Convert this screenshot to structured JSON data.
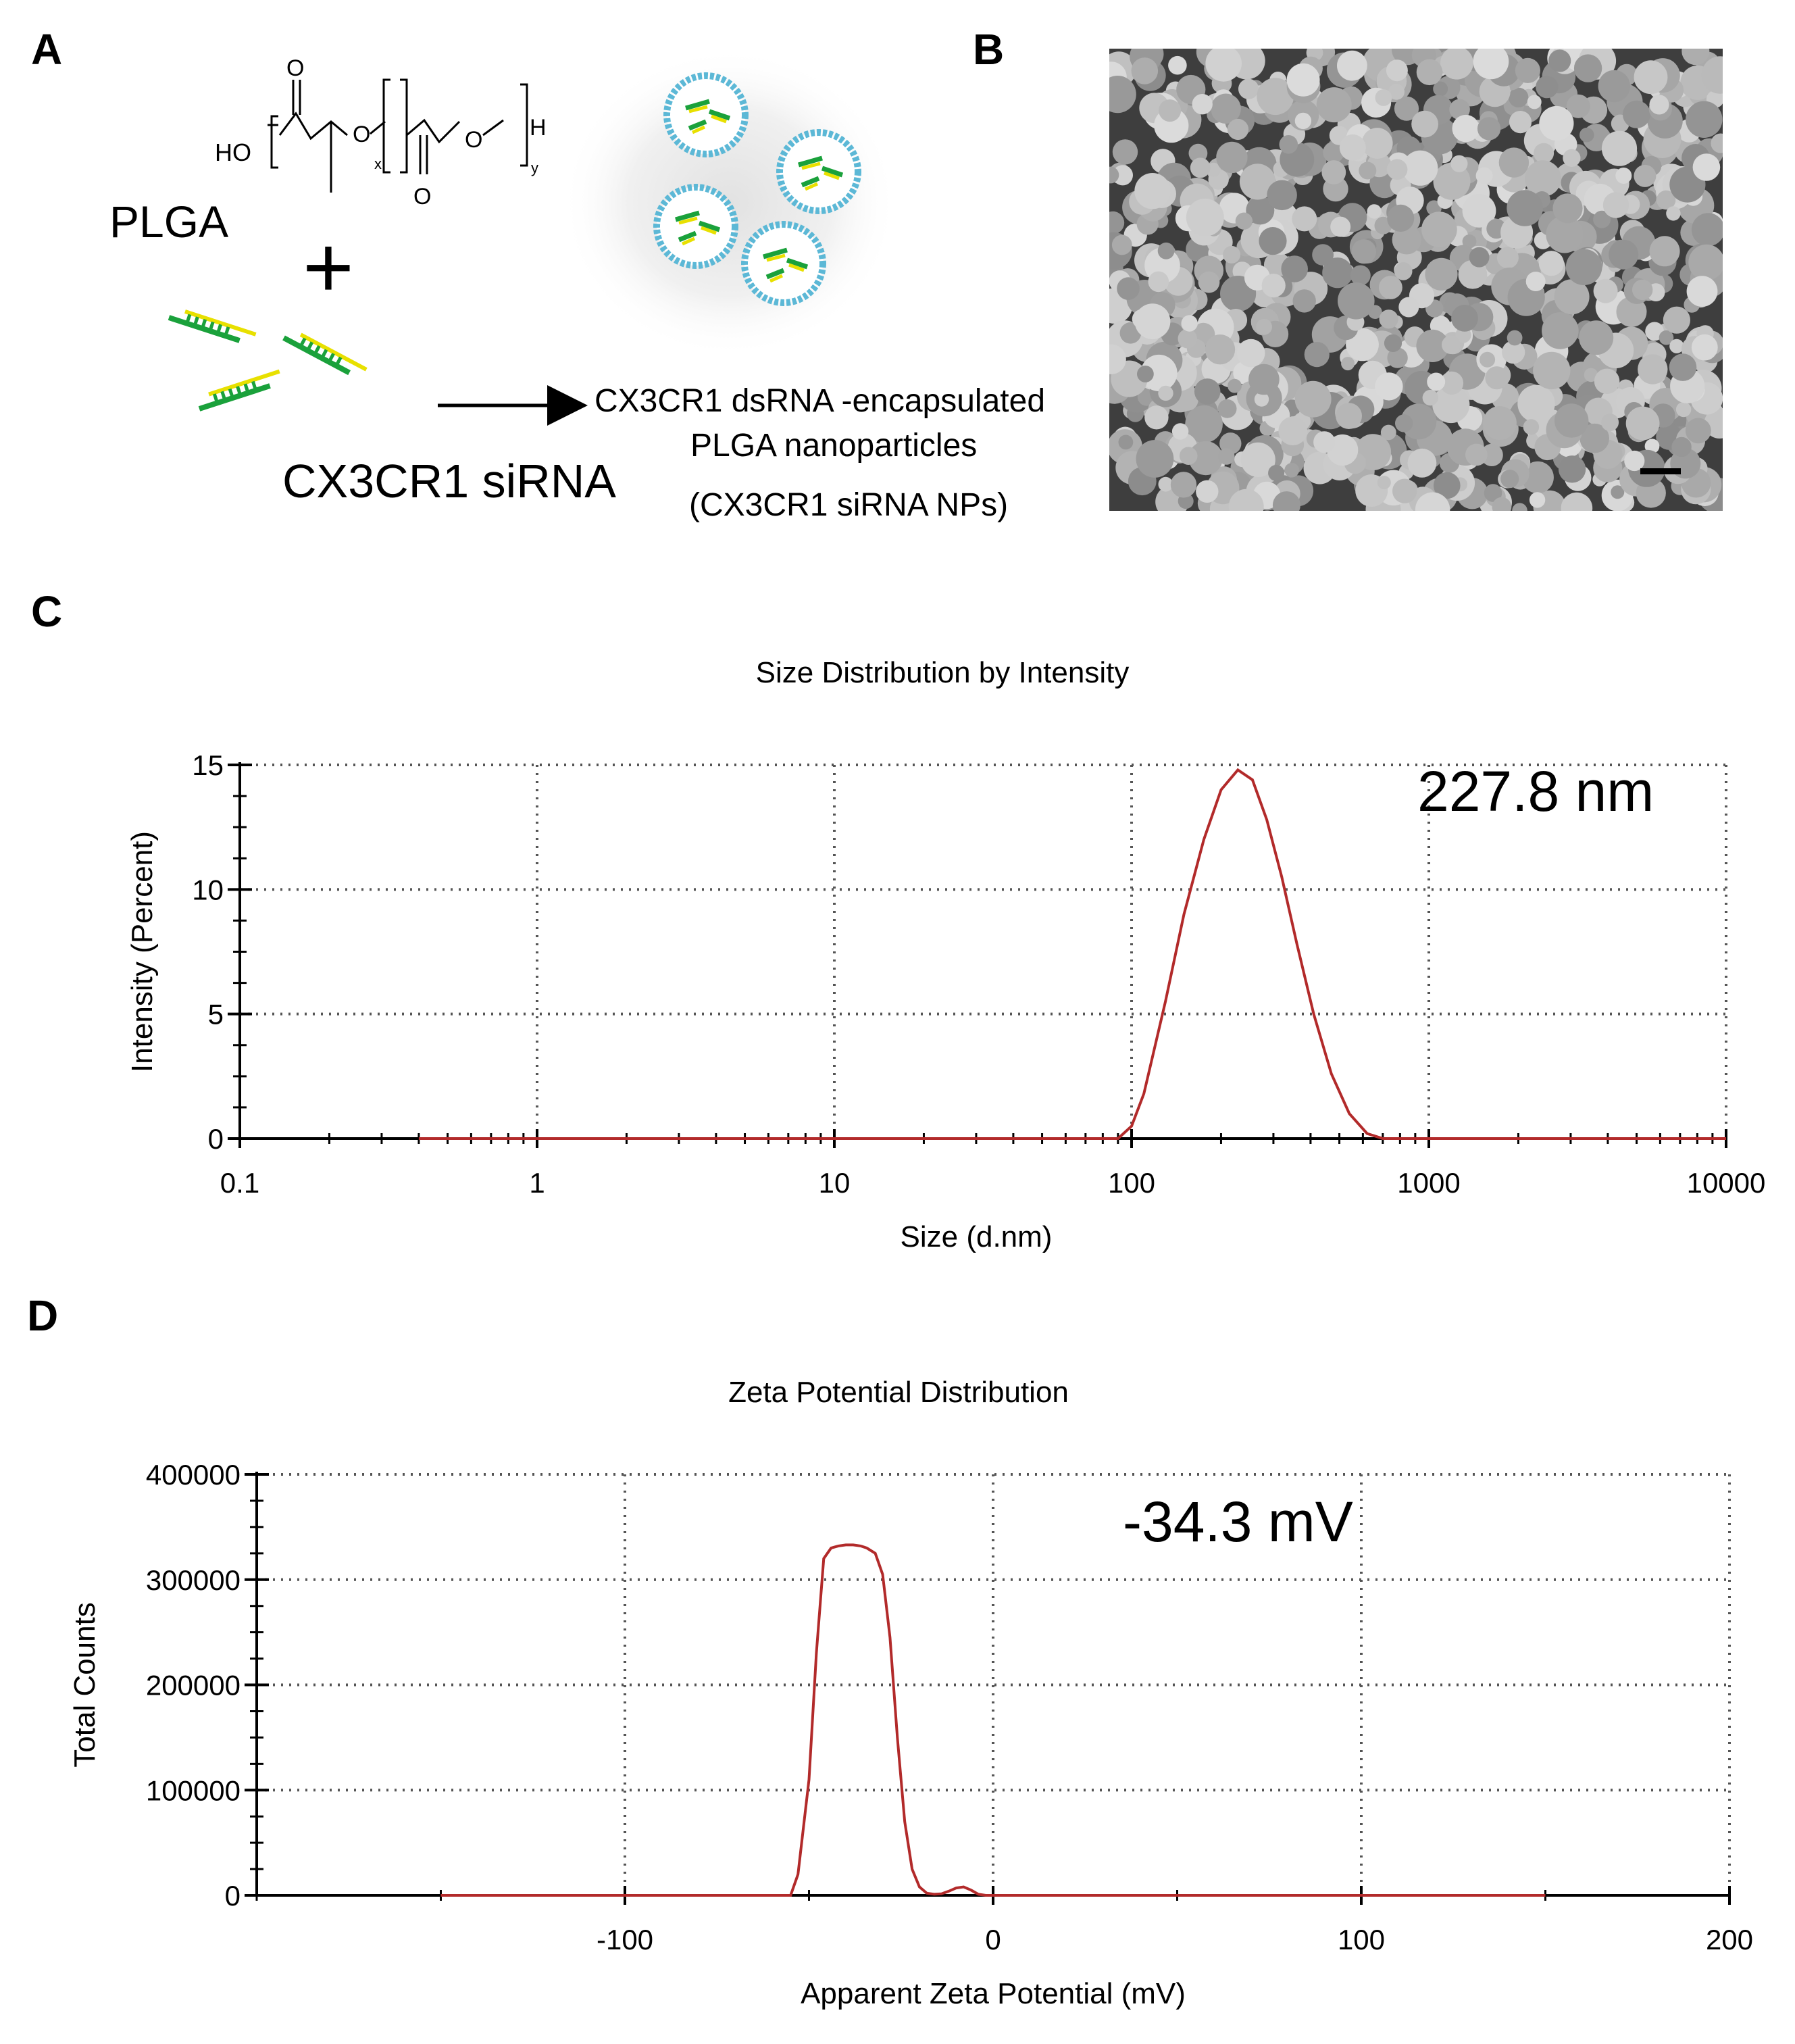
{
  "panels": {
    "A": "A",
    "B": "B",
    "C": "C",
    "D": "D"
  },
  "panel_a": {
    "polymer_label": "PLGA",
    "plus_sign": "+",
    "sirna_label": "CX3CR1 siRNA",
    "product_line1": "CX3CR1 dsRNA -encapsulated",
    "product_line2": "PLGA  nanoparticles",
    "product_line3": "(CX3CR1 siRNA NPs)",
    "structure": {
      "ho": "HO",
      "o1": "O",
      "o2": "O",
      "o3": "O",
      "o4": "O",
      "h": "H",
      "x": "x",
      "y": "y"
    }
  },
  "colors": {
    "curve": "#b22a2a",
    "grid": "#555555",
    "sirna_green": "#1aa13b",
    "sirna_yellow": "#e8e000",
    "np_shell": "#5cb8d6"
  },
  "chart_data": [
    {
      "type": "line",
      "title": "Size Distribution by Intensity",
      "xlabel": "Size (d.nm)",
      "ylabel": "Intensity (Percent)",
      "x_scale": "log",
      "xlim": [
        0.1,
        10000
      ],
      "ylim": [
        0,
        15
      ],
      "x_ticks": [
        "0.1",
        "1",
        "10",
        "100",
        "1000",
        "10000"
      ],
      "x_tick_values": [
        0.1,
        1,
        10,
        100,
        1000,
        10000
      ],
      "y_ticks": [
        "0",
        "5",
        "10",
        "15"
      ],
      "y_tick_values": [
        0,
        5,
        10,
        15
      ],
      "grid": true,
      "annotation": "227.8 nm",
      "series": [
        {
          "x": [
            0.4,
            90,
            100,
            110,
            130,
            150,
            175,
            200,
            227.8,
            255,
            285,
            320,
            360,
            410,
            470,
            540,
            620,
            700,
            800,
            10000
          ],
          "y": [
            0,
            0,
            0.5,
            1.8,
            5.5,
            9.0,
            12.0,
            14.0,
            14.8,
            14.4,
            12.8,
            10.5,
            7.8,
            5.0,
            2.6,
            1.0,
            0.2,
            0,
            0,
            0
          ]
        }
      ]
    },
    {
      "type": "line",
      "title": "Zeta Potential Distribution",
      "xlabel": "Apparent Zeta Potential (mV)",
      "ylabel": "Total Counts",
      "xlim": [
        -200,
        200
      ],
      "ylim": [
        0,
        400000
      ],
      "x_ticks": [
        "-100",
        "0",
        "100",
        "200"
      ],
      "x_tick_values": [
        -100,
        0,
        100,
        200
      ],
      "y_ticks": [
        "0",
        "100000",
        "200000",
        "300000",
        "400000"
      ],
      "y_tick_values": [
        0,
        100000,
        200000,
        300000,
        400000
      ],
      "grid": true,
      "annotation": "-34.3 mV",
      "series": [
        {
          "x": [
            -150,
            -55,
            -53,
            -50,
            -48,
            -46,
            -44,
            -42,
            -40,
            -38,
            -36,
            -34.3,
            -32,
            -30,
            -28,
            -26,
            -24,
            -22,
            -20,
            -18,
            -16,
            -14,
            -12,
            -10,
            -8,
            -6,
            -4,
            -2,
            150
          ],
          "y": [
            0,
            0,
            20000,
            110000,
            230000,
            320000,
            330000,
            332000,
            333000,
            333000,
            332000,
            330000,
            325000,
            305000,
            245000,
            150000,
            70000,
            25000,
            8000,
            2000,
            1000,
            1500,
            4000,
            7000,
            8000,
            5000,
            1000,
            0,
            0
          ]
        }
      ]
    }
  ]
}
